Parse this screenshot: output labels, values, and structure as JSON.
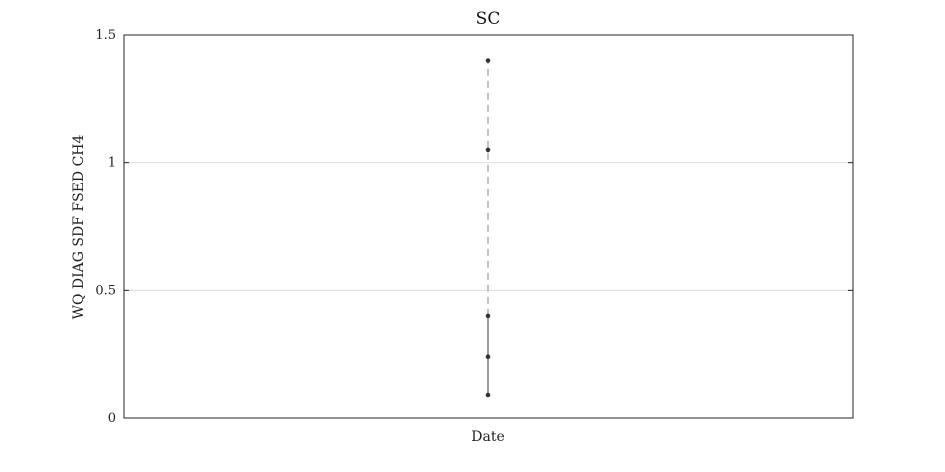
{
  "chart_data": {
    "type": "scatter",
    "title": "SC",
    "xlabel": "Date",
    "ylabel": "WQ DIAG SDF FSED CH4",
    "ylim": [
      0,
      1.5
    ],
    "yticks": [
      0,
      0.5,
      1,
      1.5
    ],
    "ytick_labels": [
      "0",
      "0.5",
      "1",
      "1.5"
    ],
    "grid": "horizontal",
    "series": [
      {
        "marker_color": "#333333",
        "points": [
          0.09,
          0.24,
          0.4,
          1.05,
          1.4
        ]
      }
    ],
    "range_segments": [
      {
        "from": 0.09,
        "to": 0.4,
        "style": "solid",
        "color": "#9a9a9a"
      },
      {
        "from": 0.4,
        "to": 1.4,
        "style": "dashed",
        "color": "#c4c4c4"
      }
    ],
    "colors": {
      "axis": "#262626",
      "grid": "#dcdcdc"
    }
  }
}
